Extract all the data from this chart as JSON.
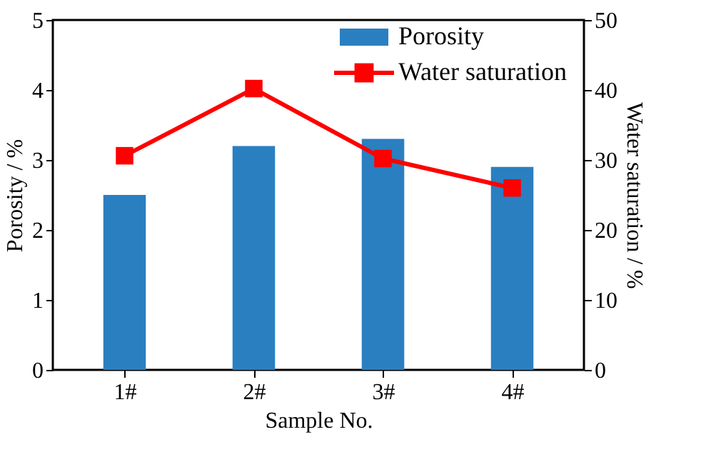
{
  "chart_data": {
    "type": "bar",
    "xlabel": "Sample No.",
    "ylabel": "Porosity / %",
    "y2label": "Water saturation / %",
    "categories": [
      "1#",
      "2#",
      "3#",
      "4#"
    ],
    "series": [
      {
        "name": "Porosity",
        "color": "#2a7fc1",
        "values": [
          2.5,
          3.2,
          3.3,
          2.9
        ]
      },
      {
        "name": "Water saturation",
        "type": "line",
        "axis": "y2",
        "color": "#ff0000",
        "values": [
          30.6,
          40.2,
          30.2,
          26.0
        ]
      }
    ],
    "ylim": [
      0,
      5
    ],
    "yticks": [
      0,
      1,
      2,
      3,
      4,
      5
    ],
    "y2lim": [
      0,
      50
    ],
    "y2ticks": [
      0,
      10,
      20,
      30,
      40,
      50
    ],
    "marker": "square",
    "line_style": "solid",
    "grid": false,
    "legend": "top right"
  }
}
